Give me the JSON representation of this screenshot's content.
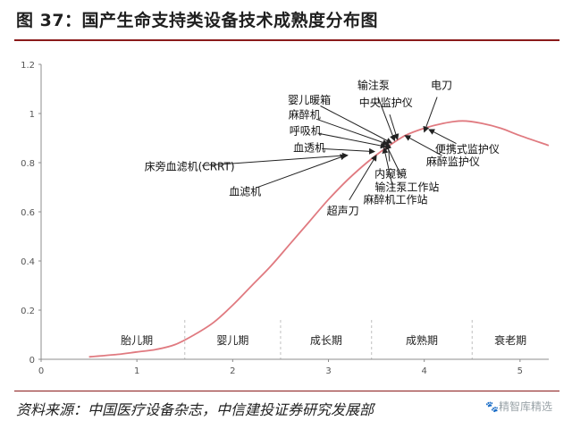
{
  "figure": {
    "title": "图  37：国产生命支持类设备技术成熟度分布图",
    "source": "资料来源：中国医疗设备杂志，中信建投证券研究发展部",
    "watermark": "🐾精智库精选"
  },
  "chart_data": {
    "type": "line",
    "title": "",
    "xlabel": "",
    "ylabel": "",
    "xlim": [
      0,
      5.3
    ],
    "ylim": [
      0,
      1.2
    ],
    "x_ticks": [
      0,
      1,
      2,
      3,
      4,
      5
    ],
    "y_ticks": [
      0,
      0.2,
      0.4,
      0.6,
      0.8,
      1,
      1.2
    ],
    "y_tick_labels": [
      "0",
      "0.2",
      "0.4",
      "0.6",
      "0.8",
      "1",
      "1.2"
    ],
    "grid": false,
    "legend": "none",
    "colors": {
      "curve": "#e07a80",
      "axis": "#8c8c8c",
      "stage_divider": "#c0c0c0",
      "arrow": "#222222"
    },
    "series": [
      {
        "x": [
          0.5,
          0.8,
          1.0,
          1.2,
          1.4,
          1.6,
          1.8,
          2.0,
          2.2,
          2.4,
          2.6,
          2.8,
          3.0,
          3.2,
          3.4,
          3.6,
          3.8,
          4.0,
          4.2,
          4.4,
          4.6,
          4.8,
          5.0,
          5.3
        ],
        "y": [
          0.01,
          0.02,
          0.03,
          0.04,
          0.06,
          0.1,
          0.15,
          0.22,
          0.3,
          0.38,
          0.47,
          0.56,
          0.65,
          0.73,
          0.8,
          0.86,
          0.91,
          0.94,
          0.96,
          0.97,
          0.96,
          0.94,
          0.91,
          0.87
        ]
      }
    ],
    "stages": [
      {
        "label": "胎儿期",
        "from": 0.5,
        "to": 1.5
      },
      {
        "label": "婴儿期",
        "from": 1.5,
        "to": 2.5
      },
      {
        "label": "成长期",
        "from": 2.5,
        "to": 3.45
      },
      {
        "label": "成熟期",
        "from": 3.45,
        "to": 4.5
      },
      {
        "label": "衰老期",
        "from": 4.5,
        "to": 5.3
      }
    ],
    "annotations": [
      {
        "label": "电刀",
        "x": 4.0,
        "y": 0.925,
        "tx": 4.18,
        "ty": 1.1
      },
      {
        "label": "输注泵",
        "x": 3.69,
        "y": 0.89,
        "tx": 3.47,
        "ty": 1.1
      },
      {
        "label": "中央监护仪",
        "x": 3.72,
        "y": 0.895,
        "tx": 3.6,
        "ty": 1.03
      },
      {
        "label": "婴儿暖箱",
        "x": 3.66,
        "y": 0.88,
        "tx": 2.8,
        "ty": 1.04
      },
      {
        "label": "麻醉机",
        "x": 3.62,
        "y": 0.875,
        "tx": 2.75,
        "ty": 0.98
      },
      {
        "label": "呼吸机",
        "x": 3.6,
        "y": 0.865,
        "tx": 2.76,
        "ty": 0.915
      },
      {
        "label": "血透机",
        "x": 3.48,
        "y": 0.845,
        "tx": 2.8,
        "ty": 0.845
      },
      {
        "label": "床旁血滤机(CRRT)",
        "x": 3.2,
        "y": 0.83,
        "tx": 1.55,
        "ty": 0.77
      },
      {
        "label": "血滤机",
        "x": 3.18,
        "y": 0.83,
        "tx": 2.13,
        "ty": 0.667
      },
      {
        "label": "超声刀",
        "x": 3.5,
        "y": 0.83,
        "tx": 3.15,
        "ty": 0.59
      },
      {
        "label": "便携式监护仪",
        "x": 4.05,
        "y": 0.935,
        "tx": 4.45,
        "ty": 0.84
      },
      {
        "label": "麻醉监护仪",
        "x": 3.8,
        "y": 0.91,
        "tx": 4.3,
        "ty": 0.79
      },
      {
        "label": "内窥镜",
        "x": 3.62,
        "y": 0.88,
        "tx": 3.65,
        "ty": 0.74
      },
      {
        "label": "输注泵工作站",
        "x": 3.6,
        "y": 0.875,
        "tx": 3.82,
        "ty": 0.685
      },
      {
        "label": "麻醉机工作站",
        "x": 3.58,
        "y": 0.86,
        "tx": 3.7,
        "ty": 0.635
      }
    ]
  }
}
